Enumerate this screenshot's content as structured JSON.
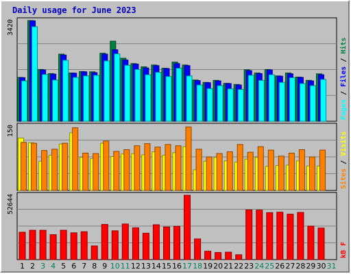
{
  "chart_data": {
    "type": "bar",
    "title": "Daily usage for June 2023",
    "categories": [
      "1",
      "2",
      "3",
      "4",
      "5",
      "6",
      "7",
      "8",
      "9",
      "10",
      "11",
      "12",
      "13",
      "14",
      "15",
      "16",
      "17",
      "18",
      "19",
      "20",
      "21",
      "22",
      "23",
      "24",
      "25",
      "26",
      "27",
      "28",
      "29",
      "30",
      "31"
    ],
    "weekend_days": [
      "3",
      "4",
      "10",
      "11",
      "17",
      "18",
      "24",
      "25",
      "31"
    ],
    "panels": [
      {
        "max_label": "3420",
        "ymax": 3420,
        "ylabel_parts": [
          "Pages",
          " / ",
          "Files",
          " / ",
          "Hits"
        ],
        "series": [
          {
            "name": "Hits",
            "color": "#008040",
            "values": [
              1490,
              3420,
              1760,
              1620,
              2280,
              1640,
              1690,
              1680,
              2310,
              2720,
              2140,
              1960,
              1850,
              1910,
              1800,
              2010,
              1910,
              1400,
              1320,
              1390,
              1290,
              1250,
              1750,
              1640,
              1760,
              1540,
              1640,
              1500,
              1390,
              1610,
              0
            ]
          },
          {
            "name": "Files",
            "color": "#0000ff",
            "values": [
              1480,
              3410,
              1740,
              1600,
              2250,
              1630,
              1680,
              1650,
              2280,
              2430,
              2080,
              1940,
              1810,
              1890,
              1790,
              1960,
              1890,
              1380,
              1310,
              1370,
              1280,
              1230,
              1720,
              1620,
              1740,
              1530,
              1610,
              1490,
              1370,
              1580,
              0
            ]
          },
          {
            "name": "Pages",
            "color": "#00ffff",
            "values": [
              1370,
              3210,
              1590,
              1400,
              2070,
              1490,
              1540,
              1560,
              2050,
              2290,
              1900,
              1760,
              1580,
              1660,
              1520,
              1800,
              1540,
              1230,
              1110,
              1210,
              1100,
              1080,
              1560,
              1390,
              1580,
              1320,
              1480,
              1280,
              1210,
              1420,
              0
            ]
          }
        ]
      },
      {
        "max_label": "150",
        "ymax": 150,
        "ylabel_parts": [
          "Sites",
          " / ",
          "Visits"
        ],
        "series": [
          {
            "name": "Visits",
            "color": "#ffff00",
            "values": [
              122,
              111,
              68,
              82,
              108,
              134,
              77,
              74,
              110,
              79,
              85,
              86,
              83,
              90,
              82,
              88,
              102,
              48,
              68,
              77,
              69,
              66,
              73,
              77,
              56,
              58,
              59,
              69,
              57,
              57,
              0
            ]
          },
          {
            "name": "Sites",
            "color": "#ff8000",
            "values": [
              112,
              110,
              93,
              96,
              110,
              146,
              87,
              86,
              115,
              91,
              95,
              104,
              109,
              101,
              107,
              104,
              148,
              96,
              78,
              86,
              90,
              107,
              89,
              102,
              94,
              80,
              87,
              95,
              78,
              94,
              0
            ]
          }
        ]
      },
      {
        "max_label": "52644",
        "ymax": 52644,
        "ylabel_parts": [
          "kB F"
        ],
        "series": [
          {
            "name": "kB F",
            "color": "#ff0000",
            "values": [
              22400,
              24000,
              24000,
              20400,
              24000,
              21900,
              22800,
              11200,
              28800,
              23600,
              29100,
              26000,
              21600,
              28500,
              26700,
              27200,
              52644,
              16900,
              6900,
              5800,
              6100,
              4000,
              40600,
              40500,
              38400,
              38800,
              37200,
              38600,
              27400,
              25800,
              0
            ]
          }
        ]
      }
    ],
    "legend": "none",
    "grid": true
  }
}
